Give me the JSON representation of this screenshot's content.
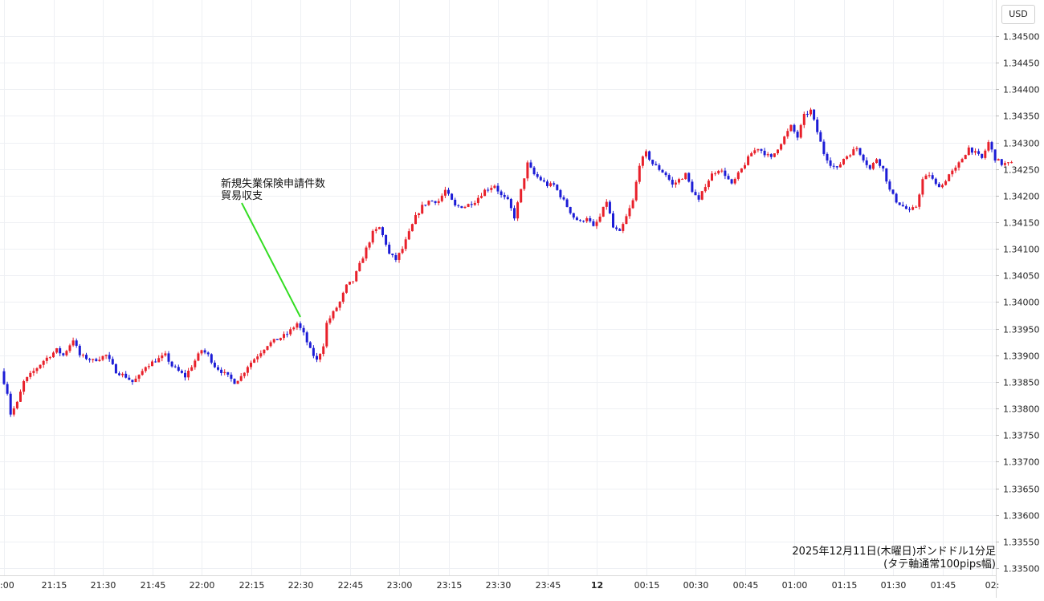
{
  "chart_data": {
    "type": "candlestick",
    "currency": "USD",
    "ylim": [
      1.335,
      1.345
    ],
    "y_ticks": [
      "1.34500",
      "1.34450",
      "1.34400",
      "1.34350",
      "1.34300",
      "1.34250",
      "1.34200",
      "1.34150",
      "1.34100",
      "1.34050",
      "1.34000",
      "1.33950",
      "1.33900",
      "1.33850",
      "1.33800",
      "1.33750",
      "1.33700",
      "1.33650",
      "1.33600",
      "1.33550",
      "1.33500"
    ],
    "x_tick_labels": [
      ":00",
      "21:15",
      "21:30",
      "21:45",
      "22:00",
      "22:15",
      "22:30",
      "22:45",
      "23:00",
      "23:15",
      "23:30",
      "23:45",
      "12",
      "00:15",
      "00:30",
      "00:45",
      "01:00",
      "01:15",
      "01:30",
      "01:45",
      "02:"
    ],
    "x_range_minutes": [
      0,
      312
    ],
    "up_color": "#e8202a",
    "down_color": "#1c1cd6",
    "annotation": {
      "lines": [
        "新規失業保険申請件数",
        "貿易収支"
      ],
      "target_minute": 90
    },
    "caption_lines": [
      "2025年12月11日(木曜日)ポンドドル1分足",
      "(タテ軸通常100pips幅)"
    ],
    "price_path": [
      [
        0,
        1.3387
      ],
      [
        2,
        1.3383
      ],
      [
        3,
        1.3379
      ],
      [
        5,
        1.3381
      ],
      [
        7,
        1.3385
      ],
      [
        10,
        1.3387
      ],
      [
        13,
        1.3389
      ],
      [
        17,
        1.3391
      ],
      [
        19,
        1.339
      ],
      [
        22,
        1.3393
      ],
      [
        24,
        1.339
      ],
      [
        28,
        1.3389
      ],
      [
        32,
        1.339
      ],
      [
        35,
        1.3387
      ],
      [
        38,
        1.3386
      ],
      [
        40,
        1.3385
      ],
      [
        42,
        1.3386
      ],
      [
        44,
        1.3388
      ],
      [
        47,
        1.3389
      ],
      [
        50,
        1.339
      ],
      [
        52,
        1.3388
      ],
      [
        54,
        1.3387
      ],
      [
        56,
        1.3386
      ],
      [
        58,
        1.3388
      ],
      [
        61,
        1.3391
      ],
      [
        63,
        1.339
      ],
      [
        65,
        1.3388
      ],
      [
        67,
        1.3387
      ],
      [
        69,
        1.3386
      ],
      [
        71,
        1.3385
      ],
      [
        73,
        1.3386
      ],
      [
        75,
        1.3388
      ],
      [
        78,
        1.339
      ],
      [
        81,
        1.3392
      ],
      [
        84,
        1.3393
      ],
      [
        87,
        1.3394
      ],
      [
        90,
        1.3396
      ],
      [
        92,
        1.3394
      ],
      [
        94,
        1.3391
      ],
      [
        96,
        1.3389
      ],
      [
        98,
        1.3392
      ],
      [
        99,
        1.3396
      ],
      [
        101,
        1.3398
      ],
      [
        103,
        1.34
      ],
      [
        105,
        1.3403
      ],
      [
        107,
        1.3404
      ],
      [
        109,
        1.3407
      ],
      [
        111,
        1.341
      ],
      [
        113,
        1.3413
      ],
      [
        115,
        1.3414
      ],
      [
        117,
        1.3411
      ],
      [
        118,
        1.3409
      ],
      [
        120,
        1.3408
      ],
      [
        122,
        1.341
      ],
      [
        124,
        1.3413
      ],
      [
        126,
        1.3416
      ],
      [
        128,
        1.3418
      ],
      [
        130,
        1.3419
      ],
      [
        133,
        1.3419
      ],
      [
        135,
        1.3421
      ],
      [
        138,
        1.3418
      ],
      [
        141,
        1.3418
      ],
      [
        144,
        1.3419
      ],
      [
        147,
        1.3421
      ],
      [
        150,
        1.3422
      ],
      [
        152,
        1.342
      ],
      [
        154,
        1.3419
      ],
      [
        156,
        1.3416
      ],
      [
        158,
        1.3421
      ],
      [
        160,
        1.3426
      ],
      [
        162,
        1.3424
      ],
      [
        164,
        1.3423
      ],
      [
        166,
        1.3422
      ],
      [
        168,
        1.3422
      ],
      [
        170,
        1.342
      ],
      [
        172,
        1.3418
      ],
      [
        174,
        1.3416
      ],
      [
        176,
        1.3415
      ],
      [
        178,
        1.3416
      ],
      [
        180,
        1.3414
      ],
      [
        182,
        1.3416
      ],
      [
        184,
        1.3419
      ],
      [
        186,
        1.3414
      ],
      [
        188,
        1.3413
      ],
      [
        190,
        1.3416
      ],
      [
        192,
        1.3419
      ],
      [
        194,
        1.3426
      ],
      [
        196,
        1.3428
      ],
      [
        198,
        1.3426
      ],
      [
        200,
        1.3425
      ],
      [
        202,
        1.3424
      ],
      [
        204,
        1.3422
      ],
      [
        206,
        1.3423
      ],
      [
        208,
        1.3424
      ],
      [
        210,
        1.3421
      ],
      [
        212,
        1.3419
      ],
      [
        214,
        1.3422
      ],
      [
        216,
        1.3424
      ],
      [
        218,
        1.3425
      ],
      [
        220,
        1.3424
      ],
      [
        222,
        1.3422
      ],
      [
        224,
        1.3424
      ],
      [
        226,
        1.3426
      ],
      [
        228,
        1.3428
      ],
      [
        230,
        1.3429
      ],
      [
        232,
        1.3428
      ],
      [
        234,
        1.3427
      ],
      [
        236,
        1.3429
      ],
      [
        238,
        1.3431
      ],
      [
        240,
        1.3433
      ],
      [
        242,
        1.3431
      ],
      [
        244,
        1.3435
      ],
      [
        246,
        1.3436
      ],
      [
        248,
        1.3432
      ],
      [
        249,
        1.343
      ],
      [
        250,
        1.3428
      ],
      [
        252,
        1.3426
      ],
      [
        254,
        1.3425
      ],
      [
        256,
        1.3427
      ],
      [
        258,
        1.3428
      ],
      [
        260,
        1.3429
      ],
      [
        262,
        1.3427
      ],
      [
        264,
        1.3425
      ],
      [
        266,
        1.3427
      ],
      [
        268,
        1.3425
      ],
      [
        270,
        1.3421
      ],
      [
        272,
        1.3419
      ],
      [
        274,
        1.3418
      ],
      [
        276,
        1.3417
      ],
      [
        278,
        1.3418
      ],
      [
        280,
        1.3423
      ],
      [
        282,
        1.3424
      ],
      [
        284,
        1.3422
      ],
      [
        286,
        1.3422
      ],
      [
        288,
        1.3424
      ],
      [
        290,
        1.3425
      ],
      [
        292,
        1.3427
      ],
      [
        294,
        1.3429
      ],
      [
        296,
        1.3428
      ],
      [
        298,
        1.3427
      ],
      [
        300,
        1.343
      ],
      [
        302,
        1.3427
      ],
      [
        304,
        1.3426
      ],
      [
        306,
        1.3426
      ]
    ]
  }
}
